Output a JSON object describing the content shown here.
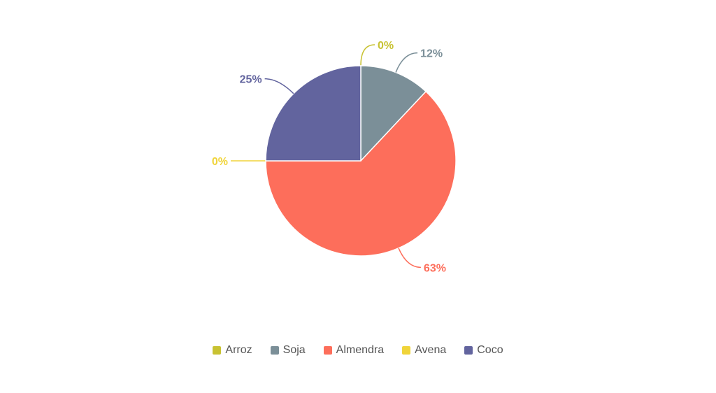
{
  "chart_data": {
    "type": "pie",
    "categories": [
      "Arroz",
      "Soja",
      "Almendra",
      "Avena",
      "Coco"
    ],
    "values": [
      0,
      12,
      63,
      0,
      25
    ],
    "data_labels": [
      "0%",
      "12%",
      "63%",
      "0%",
      "25%"
    ],
    "colors": [
      "#c8c232",
      "#7b8f98",
      "#fd6e5b",
      "#f0d43a",
      "#62649e"
    ],
    "legend_position": "bottom",
    "title": ""
  }
}
